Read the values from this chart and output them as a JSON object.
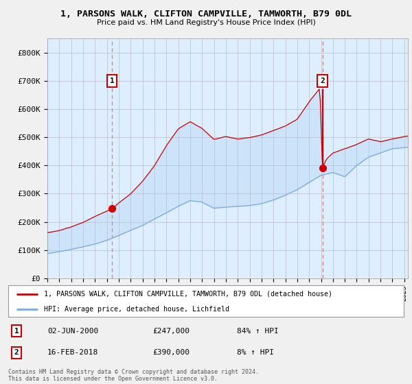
{
  "title": "1, PARSONS WALK, CLIFTON CAMPVILLE, TAMWORTH, B79 0DL",
  "subtitle": "Price paid vs. HM Land Registry's House Price Index (HPI)",
  "ylabel_ticks": [
    "£0",
    "£100K",
    "£200K",
    "£300K",
    "£400K",
    "£500K",
    "£600K",
    "£700K",
    "£800K"
  ],
  "ylim": [
    0,
    850000
  ],
  "xlim_start": 1995.0,
  "xlim_end": 2025.3,
  "sale1_date": 2000.42,
  "sale1_price": 247000,
  "sale2_date": 2018.12,
  "sale2_price": 390000,
  "legend_line1": "1, PARSONS WALK, CLIFTON CAMPVILLE, TAMWORTH, B79 0DL (detached house)",
  "legend_line2": "HPI: Average price, detached house, Lichfield",
  "table_row1": [
    "1",
    "02-JUN-2000",
    "£247,000",
    "84% ↑ HPI"
  ],
  "table_row2": [
    "2",
    "16-FEB-2018",
    "£390,000",
    "8% ↑ HPI"
  ],
  "footnote": "Contains HM Land Registry data © Crown copyright and database right 2024.\nThis data is licensed under the Open Government Licence v3.0.",
  "color_red": "#cc0000",
  "color_blue": "#7aaadd",
  "color_vline": "#dd8888",
  "plot_bg_color": "#ddeeff",
  "background_color": "#f0f0f0",
  "marker_box_color": "#cc0000",
  "hpi_knots_t": [
    1995,
    1996,
    1997,
    1998,
    1999,
    2000,
    2001,
    2002,
    2003,
    2004,
    2005,
    2006,
    2007,
    2008,
    2009,
    2010,
    2011,
    2012,
    2013,
    2014,
    2015,
    2016,
    2017,
    2018,
    2019,
    2020,
    2021,
    2022,
    2023,
    2024,
    2025.3
  ],
  "hpi_knots_v": [
    88000,
    95000,
    103000,
    112000,
    122000,
    135000,
    152000,
    170000,
    188000,
    210000,
    232000,
    255000,
    275000,
    270000,
    248000,
    252000,
    255000,
    258000,
    265000,
    278000,
    295000,
    315000,
    340000,
    365000,
    375000,
    360000,
    400000,
    430000,
    445000,
    460000,
    465000
  ],
  "prop_knots_t": [
    1995,
    1996,
    1997,
    1998,
    1999,
    2000.42,
    2001,
    2002,
    2003,
    2004,
    2005,
    2006,
    2007,
    2008,
    2009,
    2010,
    2011,
    2012,
    2013,
    2014,
    2015,
    2016,
    2017,
    2017.9,
    2018.12,
    2018.5,
    2019,
    2020,
    2021,
    2022,
    2023,
    2024,
    2025.3
  ],
  "prop_knots_v": [
    162000,
    170000,
    182000,
    198000,
    220000,
    247000,
    268000,
    300000,
    345000,
    400000,
    470000,
    530000,
    555000,
    530000,
    490000,
    500000,
    490000,
    495000,
    505000,
    520000,
    535000,
    560000,
    620000,
    668000,
    390000,
    420000,
    440000,
    455000,
    470000,
    490000,
    480000,
    490000,
    500000
  ]
}
